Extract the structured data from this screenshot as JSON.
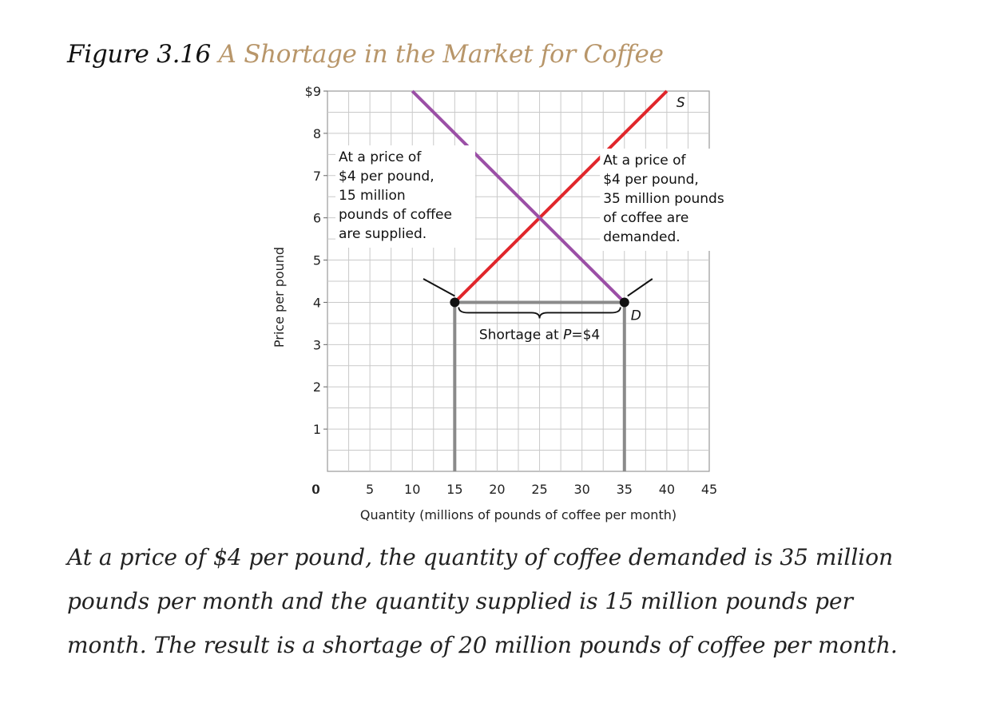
{
  "figure": {
    "label": "Figure 3.16",
    "title": "A Shortage in the Market for Coffee",
    "caption": "At a price of $4 per pound, the quantity of coffee demanded is 35 million pounds per month and the quantity supplied is 15 million pounds per month. The result is a shortage of 20 million pounds of coffee per month."
  },
  "colors": {
    "supply": "#e0262b",
    "demand": "#9b4fa6",
    "grid": "#c9c9c9",
    "title_accent": "#b8966a",
    "bracket": "#888888"
  },
  "chart_data": {
    "type": "line",
    "xlabel": "Quantity (millions of pounds of coffee per month)",
    "ylabel": "Price per pound",
    "xlim": [
      0,
      45
    ],
    "ylim": [
      0,
      9
    ],
    "x_ticks": [
      {
        "value": 0,
        "label": "0"
      },
      {
        "value": 5,
        "label": "5"
      },
      {
        "value": 10,
        "label": "10"
      },
      {
        "value": 15,
        "label": "15"
      },
      {
        "value": 20,
        "label": "20"
      },
      {
        "value": 25,
        "label": "25"
      },
      {
        "value": 30,
        "label": "30"
      },
      {
        "value": 35,
        "label": "35"
      },
      {
        "value": 40,
        "label": "40"
      },
      {
        "value": 45,
        "label": "45"
      }
    ],
    "y_ticks": [
      {
        "value": 1,
        "label": "1"
      },
      {
        "value": 2,
        "label": "2"
      },
      {
        "value": 3,
        "label": "3"
      },
      {
        "value": 4,
        "label": "4"
      },
      {
        "value": 5,
        "label": "5"
      },
      {
        "value": 6,
        "label": "6"
      },
      {
        "value": 7,
        "label": "7"
      },
      {
        "value": 8,
        "label": "8"
      },
      {
        "value": 9,
        "label": "$9"
      }
    ],
    "grid": true,
    "series": [
      {
        "name": "S",
        "color": "#e0262b",
        "points": [
          [
            15,
            4
          ],
          [
            40,
            9
          ]
        ]
      },
      {
        "name": "D",
        "color": "#9b4fa6",
        "points": [
          [
            10,
            9
          ],
          [
            35,
            4
          ]
        ]
      }
    ],
    "markers": [
      {
        "x": 15,
        "y": 4
      },
      {
        "x": 35,
        "y": 4
      }
    ],
    "shortage": {
      "price": 4,
      "quantity_supplied": 15,
      "quantity_demanded": 35,
      "label_prefix": "Shortage at ",
      "label_var": "P",
      "label_suffix": "=$4"
    },
    "annotations": [
      {
        "lines": [
          "At a price of",
          "$4 per pound,",
          "15 million",
          "pounds of coffee",
          "are supplied."
        ]
      },
      {
        "lines": [
          "At a price of",
          "$4 per pound,",
          "35 million pounds",
          "of coffee are",
          "demanded."
        ]
      }
    ]
  }
}
